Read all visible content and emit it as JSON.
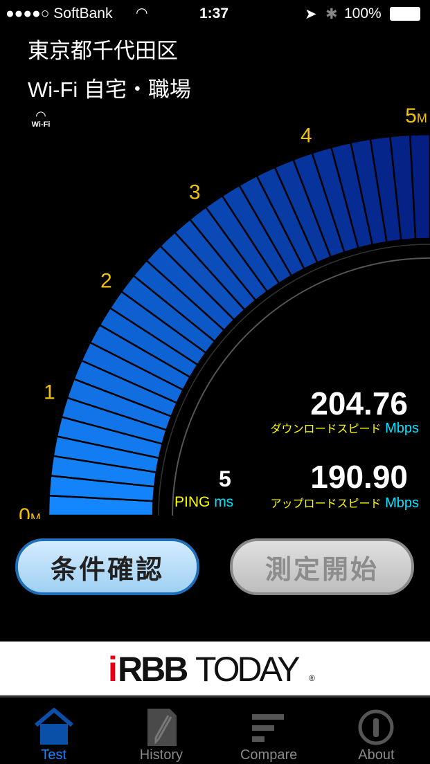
{
  "status_bar": {
    "carrier": "●●●●○ SoftBank",
    "time": "1:37",
    "battery": "100%"
  },
  "location": "東京都千代田区",
  "connection": "Wi-Fi 自宅・職場",
  "wifi_badge": "Wi-Fi",
  "gauge": {
    "ticks": [
      "0",
      "1",
      "2",
      "3",
      "4",
      "5"
    ],
    "unit": "M",
    "level_fraction": 1.0
  },
  "download": {
    "value": "204.76",
    "label": "ダウンロードスピード",
    "unit": "Mbps"
  },
  "upload": {
    "value": "190.90",
    "label": "アップロードスピード",
    "unit": "Mbps"
  },
  "ping": {
    "value": "5",
    "label": "PING",
    "unit": "ms"
  },
  "buttons": {
    "conditions": "条件確認",
    "start": "測定開始"
  },
  "banner": {
    "logo": "iRBBTODAY"
  },
  "tabs": [
    {
      "label": "Test",
      "icon": "home-icon",
      "active": true
    },
    {
      "label": "History",
      "icon": "edit-icon"
    },
    {
      "label": "Compare",
      "icon": "bars-icon"
    },
    {
      "label": "About",
      "icon": "info-icon"
    }
  ],
  "colors": {
    "accent": "#1a82ff",
    "yellow": "#ffff00",
    "cyan": "#00e5ff",
    "tick": "#f2c200"
  }
}
